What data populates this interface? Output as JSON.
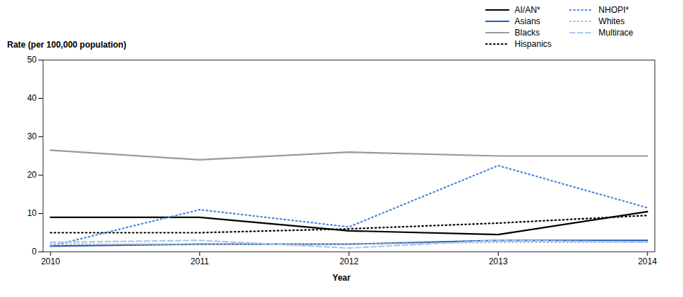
{
  "chart_data": {
    "type": "line",
    "ylabel": "Rate (per 100,000 population)",
    "xlabel": "Year",
    "x": [
      2010,
      2011,
      2012,
      2013,
      2014
    ],
    "series": [
      {
        "name": "AI/AN*",
        "color": "#000000",
        "line_style": "solid",
        "values": [
          9.0,
          9.0,
          5.5,
          4.5,
          10.5
        ]
      },
      {
        "name": "Asians",
        "color": "#2060c0",
        "line_style": "solid",
        "values": [
          1.5,
          2.0,
          2.0,
          3.0,
          3.0
        ]
      },
      {
        "name": "Blacks",
        "color": "#999999",
        "line_style": "solid",
        "values": [
          26.5,
          24.0,
          26.0,
          25.0,
          25.0
        ]
      },
      {
        "name": "Hispanics",
        "color": "#000000",
        "line_style": "dotted",
        "values": [
          5.0,
          5.0,
          6.0,
          7.5,
          9.5
        ]
      },
      {
        "name": "NHOPI*",
        "color": "#4488dd",
        "line_style": "dotted",
        "values": [
          1.5,
          11.0,
          6.5,
          22.5,
          11.5
        ]
      },
      {
        "name": "Whites",
        "color": "#bbbbbb",
        "line_style": "dotted",
        "values": [
          2.0,
          2.0,
          2.0,
          2.5,
          2.5
        ]
      },
      {
        "name": "Multirace",
        "color": "#aac8ee",
        "line_style": "dashed",
        "values": [
          2.5,
          3.0,
          1.0,
          3.0,
          2.5
        ]
      }
    ],
    "xlim": [
      2009.95,
      2014.05
    ],
    "xticks": [
      2010,
      2011,
      2012,
      2013,
      2014
    ],
    "ylim": [
      0,
      50
    ],
    "yticks": [
      0,
      10,
      20,
      30,
      40,
      50
    ],
    "grid": false,
    "legend": "upper right"
  }
}
